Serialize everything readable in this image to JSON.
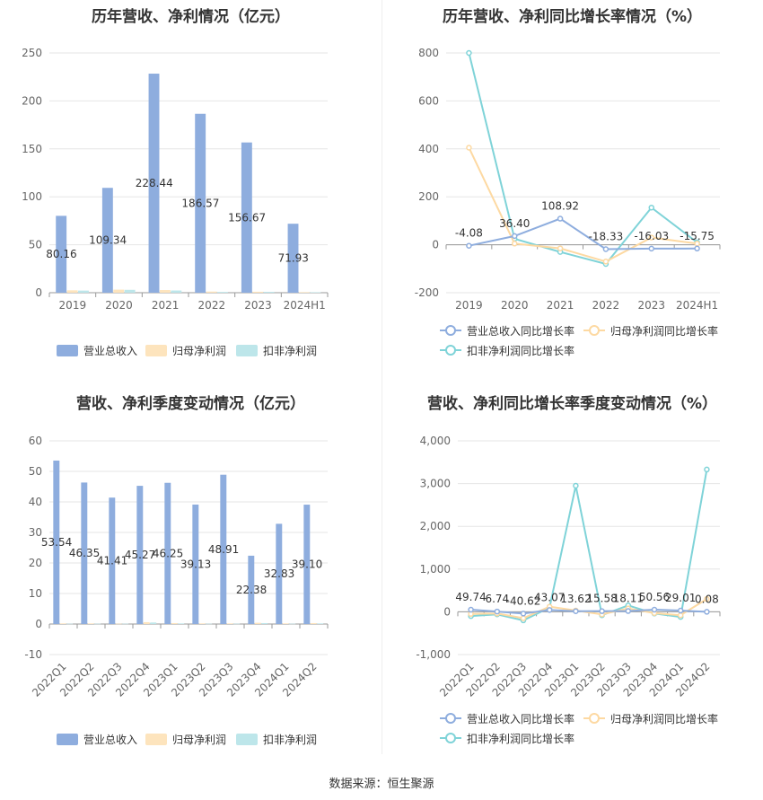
{
  "source": "数据来源：恒生聚源",
  "colors": {
    "revenue": "#8eadde",
    "net_profit": "#fde4bd",
    "deducted_profit": "#bde6ea",
    "rev_growth": "#8eadde",
    "np_growth": "#fdd9a2",
    "dp_growth": "#7fd3d8",
    "grid": "#e6e6e6",
    "axis": "#999999",
    "text": "#666666"
  },
  "chart_data": [
    {
      "id": "annual_amount",
      "type": "bar",
      "title": "历年营收、净利情况（亿元）",
      "categories": [
        "2019",
        "2020",
        "2021",
        "2022",
        "2023",
        "2024H1"
      ],
      "ylim": [
        0,
        250
      ],
      "yticks": [
        0,
        50,
        100,
        150,
        200,
        250
      ],
      "series": [
        {
          "name": "营业总收入",
          "values": [
            80.16,
            109.34,
            228.44,
            186.57,
            156.67,
            71.93
          ],
          "labels": [
            "80.16",
            "109.34",
            "228.44",
            "186.57",
            "156.67",
            "71.93"
          ]
        },
        {
          "name": "归母净利润",
          "values": [
            2.5,
            3.2,
            2.8,
            1.2,
            1.0,
            0.6
          ]
        },
        {
          "name": "扣非净利润",
          "values": [
            2.2,
            3.0,
            2.3,
            0.8,
            0.9,
            0.5
          ]
        }
      ],
      "legend": "bottom"
    },
    {
      "id": "annual_growth",
      "type": "line",
      "title": "历年营收、净利同比增长率情况（%）",
      "categories": [
        "2019",
        "2020",
        "2021",
        "2022",
        "2023",
        "2024H1"
      ],
      "ylim": [
        -200,
        800
      ],
      "yticks": [
        -200,
        0,
        200,
        400,
        600,
        800
      ],
      "series": [
        {
          "name": "营业总收入同比增长率",
          "values": [
            -4.08,
            36.4,
            108.92,
            -18.33,
            -16.03,
            -15.75
          ],
          "labels": [
            "-4.08",
            "36.40",
            "108.92",
            "-18.33",
            "-16.03",
            "-15.75"
          ]
        },
        {
          "name": "归母净利润同比增长率",
          "values": [
            405,
            5,
            -15,
            -70,
            30,
            5
          ]
        },
        {
          "name": "扣非净利润同比增长率",
          "values": [
            800,
            25,
            -30,
            -80,
            155,
            10
          ]
        }
      ],
      "legend": "bottom"
    },
    {
      "id": "quarterly_amount",
      "type": "bar",
      "title": "营收、净利季度变动情况（亿元）",
      "categories": [
        "2022Q1",
        "2022Q2",
        "2022Q3",
        "2022Q4",
        "2023Q1",
        "2023Q2",
        "2023Q3",
        "2023Q4",
        "2024Q1",
        "2024Q2"
      ],
      "ylim": [
        -10,
        60
      ],
      "yticks": [
        -10,
        0,
        10,
        20,
        30,
        40,
        50,
        60
      ],
      "series": [
        {
          "name": "营业总收入",
          "values": [
            53.54,
            46.35,
            41.41,
            45.27,
            46.25,
            39.13,
            48.91,
            22.38,
            32.83,
            39.1
          ],
          "labels": [
            "53.54",
            "46.35",
            "41.41",
            "45.27",
            "46.25",
            "39.13",
            "48.91",
            "22.38",
            "32.83",
            "39.10"
          ]
        },
        {
          "name": "归母净利润",
          "values": [
            0.2,
            0.2,
            0.1,
            0.6,
            0.3,
            0.2,
            0.2,
            0.4,
            0.2,
            0.3
          ]
        },
        {
          "name": "扣非净利润",
          "values": [
            0.1,
            0.1,
            0.1,
            0.5,
            0.2,
            0.1,
            0.1,
            0.3,
            0.1,
            0.2
          ]
        }
      ],
      "legend": "bottom"
    },
    {
      "id": "quarterly_growth",
      "type": "line",
      "title": "营收、净利同比增长率季度变动情况（%）",
      "categories": [
        "2022Q1",
        "2022Q2",
        "2022Q3",
        "2022Q4",
        "2023Q1",
        "2023Q2",
        "2023Q3",
        "2023Q4",
        "2024Q1",
        "2024Q2"
      ],
      "ylim": [
        -1000,
        4000
      ],
      "yticks": [
        -1000,
        0,
        1000,
        2000,
        3000,
        4000
      ],
      "ytick_labels": [
        "-1,000",
        "0",
        "1,000",
        "2,000",
        "3,000",
        "4,000"
      ],
      "series": [
        {
          "name": "营业总收入同比增长率",
          "values": [
            49.74,
            6.74,
            -40.62,
            43.07,
            13.62,
            15.58,
            18.11,
            50.56,
            29.01,
            0.08
          ],
          "labels": [
            "49.74",
            "6.74",
            "-40.62",
            "43.07",
            "13.62",
            "15.58",
            "18.11",
            "50.56",
            "29.01",
            "0.08"
          ]
        },
        {
          "name": "归母净利润同比增长率",
          "values": [
            -50,
            -40,
            -150,
            120,
            30,
            -60,
            80,
            -30,
            -80,
            300
          ]
        },
        {
          "name": "扣非净利润同比增长率",
          "values": [
            -100,
            -60,
            -200,
            100,
            2950,
            -80,
            150,
            -40,
            -120,
            3330
          ]
        }
      ],
      "legend": "bottom"
    }
  ]
}
